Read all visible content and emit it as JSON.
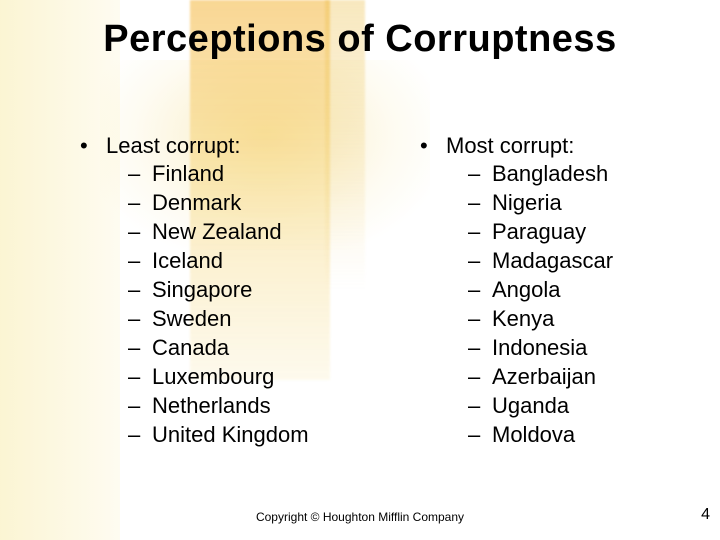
{
  "title": "Perceptions of Corruptness",
  "columns": {
    "least": {
      "header": "Least corrupt:",
      "items": [
        "Finland",
        "Denmark",
        "New Zealand",
        "Iceland",
        "Singapore",
        "Sweden",
        "Canada",
        "Luxembourg",
        "Netherlands",
        "United Kingdom"
      ]
    },
    "most": {
      "header": "Most corrupt:",
      "items": [
        "Bangladesh",
        "Nigeria",
        "Paraguay",
        "Madagascar",
        "Angola",
        "Kenya",
        "Indonesia",
        "Azerbaijan",
        "Uganda",
        "Moldova"
      ]
    }
  },
  "footer": "Copyright © Houghton Mifflin Company",
  "page_number": "4",
  "style": {
    "title_fontsize_pt": 28,
    "body_fontsize_pt": 16,
    "text_color": "#000000",
    "bg_gold_accent": "#f4b63c",
    "bg_pale": "#faf2c8",
    "dash_char": "–",
    "bullet_char": "•"
  }
}
